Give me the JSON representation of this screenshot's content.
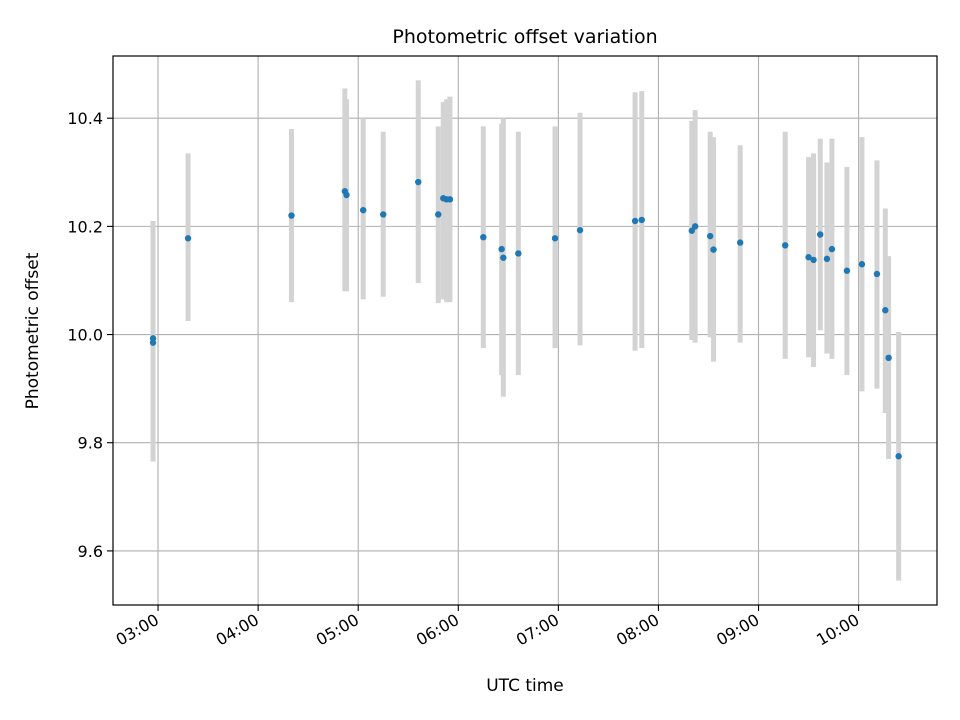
{
  "chart_data": {
    "type": "scatter",
    "title": "Photometric offset variation",
    "xlabel": "UTC time",
    "ylabel": "Photometric offset",
    "xlim": [
      "02:33",
      "10:47"
    ],
    "ylim": [
      9.5,
      10.515
    ],
    "x_ticks": [
      "03:00",
      "04:00",
      "05:00",
      "06:00",
      "07:00",
      "08:00",
      "09:00",
      "10:00"
    ],
    "y_ticks": [
      9.6,
      9.8,
      10.0,
      10.2,
      10.4
    ],
    "grid": true,
    "marker_color": "#1f77b4",
    "errorbar_color": "#d3d3d3",
    "points": [
      {
        "time": "02:57",
        "value": 9.985,
        "err_low": 9.765,
        "err_high": 10.205
      },
      {
        "time": "02:57",
        "value": 9.993,
        "err_low": 9.775,
        "err_high": 10.21
      },
      {
        "time": "03:18",
        "value": 10.178,
        "err_low": 10.025,
        "err_high": 10.335
      },
      {
        "time": "04:20",
        "value": 10.22,
        "err_low": 10.06,
        "err_high": 10.38
      },
      {
        "time": "04:52",
        "value": 10.265,
        "err_low": 10.08,
        "err_high": 10.455
      },
      {
        "time": "04:53",
        "value": 10.258,
        "err_low": 10.08,
        "err_high": 10.435
      },
      {
        "time": "05:03",
        "value": 10.23,
        "err_low": 10.065,
        "err_high": 10.4
      },
      {
        "time": "05:15",
        "value": 10.222,
        "err_low": 10.07,
        "err_high": 10.375
      },
      {
        "time": "05:36",
        "value": 10.282,
        "err_low": 10.095,
        "err_high": 10.47
      },
      {
        "time": "05:48",
        "value": 10.222,
        "err_low": 10.058,
        "err_high": 10.385
      },
      {
        "time": "05:51",
        "value": 10.252,
        "err_low": 10.065,
        "err_high": 10.43
      },
      {
        "time": "05:53",
        "value": 10.25,
        "err_low": 10.06,
        "err_high": 10.435
      },
      {
        "time": "05:55",
        "value": 10.25,
        "err_low": 10.06,
        "err_high": 10.44
      },
      {
        "time": "06:15",
        "value": 10.18,
        "err_low": 9.975,
        "err_high": 10.385
      },
      {
        "time": "06:26",
        "value": 10.158,
        "err_low": 9.925,
        "err_high": 10.39
      },
      {
        "time": "06:27",
        "value": 10.142,
        "err_low": 9.885,
        "err_high": 10.4
      },
      {
        "time": "06:36",
        "value": 10.15,
        "err_low": 9.925,
        "err_high": 10.375
      },
      {
        "time": "06:58",
        "value": 10.178,
        "err_low": 9.975,
        "err_high": 10.385
      },
      {
        "time": "07:13",
        "value": 10.193,
        "err_low": 9.98,
        "err_high": 10.41
      },
      {
        "time": "07:46",
        "value": 10.21,
        "err_low": 9.97,
        "err_high": 10.448
      },
      {
        "time": "07:50",
        "value": 10.212,
        "err_low": 9.975,
        "err_high": 10.45
      },
      {
        "time": "08:20",
        "value": 10.192,
        "err_low": 9.99,
        "err_high": 10.395
      },
      {
        "time": "08:22",
        "value": 10.2,
        "err_low": 9.985,
        "err_high": 10.415
      },
      {
        "time": "08:31",
        "value": 10.182,
        "err_low": 9.995,
        "err_high": 10.375
      },
      {
        "time": "08:33",
        "value": 10.157,
        "err_low": 9.95,
        "err_high": 10.365
      },
      {
        "time": "08:49",
        "value": 10.17,
        "err_low": 9.985,
        "err_high": 10.35
      },
      {
        "time": "09:16",
        "value": 10.165,
        "err_low": 9.955,
        "err_high": 10.375
      },
      {
        "time": "09:30",
        "value": 10.143,
        "err_low": 9.958,
        "err_high": 10.328
      },
      {
        "time": "09:33",
        "value": 10.138,
        "err_low": 9.94,
        "err_high": 10.335
      },
      {
        "time": "09:37",
        "value": 10.185,
        "err_low": 10.008,
        "err_high": 10.362
      },
      {
        "time": "09:41",
        "value": 10.14,
        "err_low": 9.965,
        "err_high": 10.318
      },
      {
        "time": "09:44",
        "value": 10.158,
        "err_low": 9.955,
        "err_high": 10.362
      },
      {
        "time": "09:53",
        "value": 10.118,
        "err_low": 9.925,
        "err_high": 10.31
      },
      {
        "time": "10:02",
        "value": 10.13,
        "err_low": 9.895,
        "err_high": 10.365
      },
      {
        "time": "10:11",
        "value": 10.112,
        "err_low": 9.9,
        "err_high": 10.322
      },
      {
        "time": "10:16",
        "value": 10.045,
        "err_low": 9.855,
        "err_high": 10.233
      },
      {
        "time": "10:18",
        "value": 9.957,
        "err_low": 9.77,
        "err_high": 10.145
      },
      {
        "time": "10:24",
        "value": 9.775,
        "err_low": 9.545,
        "err_high": 10.005
      }
    ]
  }
}
